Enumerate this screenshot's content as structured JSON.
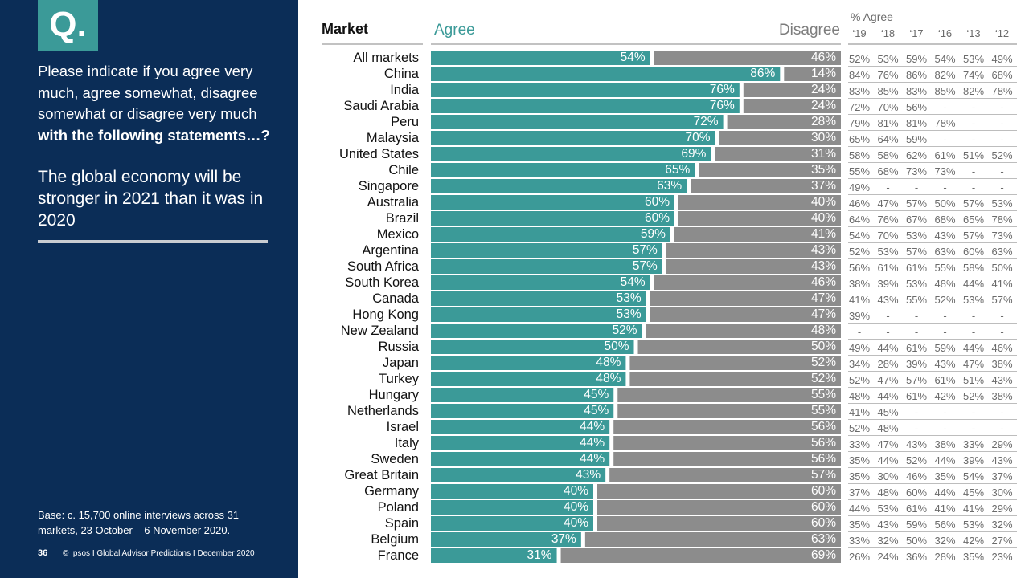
{
  "question": {
    "badge": "Q.",
    "text_regular": "Please indicate if you agree very much, agree somewhat, disagree somewhat or disagree very much",
    "text_bold": "with the following statements…?",
    "statement": "The global economy will be stronger in 2021 than it was in 2020"
  },
  "base_note": "Base: c. 15,700 online interviews across 31 markets,  23 October – 6 November 2020.",
  "footer": {
    "page_number": "36",
    "text": "© Ipsos I Global Advisor Predictions I December 2020"
  },
  "colors": {
    "panel": "#0b2d57",
    "agree": "#3b9a98",
    "disagree": "#8c8c8c",
    "accent": "#3b9a98"
  },
  "chart_data": {
    "type": "bar",
    "stacked": true,
    "orientation": "horizontal",
    "column_headers": {
      "market": "Market",
      "agree": "Agree",
      "disagree": "Disagree",
      "trend_title": "% Agree",
      "trend_years": [
        "‘19",
        "‘18",
        "‘17",
        "‘16",
        "‘13",
        "‘12"
      ]
    },
    "categories": [
      "All markets",
      "China",
      "India",
      "Saudi Arabia",
      "Peru",
      "Malaysia",
      "United States",
      "Chile",
      "Singapore",
      "Australia",
      "Brazil",
      "Mexico",
      "Argentina",
      "South Africa",
      "South Korea",
      "Canada",
      "Hong Kong",
      "New Zealand",
      "Russia",
      "Japan",
      "Turkey",
      "Hungary",
      "Netherlands",
      "Israel",
      "Italy",
      "Sweden",
      "Great Britain",
      "Germany",
      "Poland",
      "Spain",
      "Belgium",
      "France"
    ],
    "series": [
      {
        "name": "Agree",
        "values": [
          54,
          86,
          76,
          76,
          72,
          70,
          69,
          65,
          63,
          60,
          60,
          59,
          57,
          57,
          54,
          53,
          53,
          52,
          50,
          48,
          48,
          45,
          45,
          44,
          44,
          44,
          43,
          40,
          40,
          40,
          37,
          31
        ]
      },
      {
        "name": "Disagree",
        "values": [
          46,
          14,
          24,
          24,
          28,
          30,
          31,
          35,
          37,
          40,
          40,
          41,
          43,
          43,
          46,
          47,
          47,
          48,
          50,
          52,
          52,
          55,
          55,
          56,
          56,
          56,
          57,
          60,
          60,
          60,
          63,
          69
        ]
      }
    ],
    "xlim": [
      0,
      100
    ],
    "trend": [
      [
        "52%",
        "53%",
        "59%",
        "54%",
        "53%",
        "49%"
      ],
      [
        "84%",
        "76%",
        "86%",
        "82%",
        "74%",
        "68%"
      ],
      [
        "83%",
        "85%",
        "83%",
        "85%",
        "82%",
        "78%"
      ],
      [
        "72%",
        "70%",
        "56%",
        "-",
        "-",
        "-"
      ],
      [
        "79%",
        "81%",
        "81%",
        "78%",
        "-",
        "-"
      ],
      [
        "65%",
        "64%",
        "59%",
        "-",
        "-",
        "-"
      ],
      [
        "58%",
        "58%",
        "62%",
        "61%",
        "51%",
        "52%"
      ],
      [
        "55%",
        "68%",
        "73%",
        "73%",
        "-",
        "-"
      ],
      [
        "49%",
        "-",
        "-",
        "-",
        "-",
        "-"
      ],
      [
        "46%",
        "47%",
        "57%",
        "50%",
        "57%",
        "53%"
      ],
      [
        "64%",
        "76%",
        "67%",
        "68%",
        "65%",
        "78%"
      ],
      [
        "54%",
        "70%",
        "53%",
        "43%",
        "57%",
        "73%"
      ],
      [
        "52%",
        "53%",
        "57%",
        "63%",
        "60%",
        "63%"
      ],
      [
        "56%",
        "61%",
        "61%",
        "55%",
        "58%",
        "50%"
      ],
      [
        "38%",
        "39%",
        "53%",
        "48%",
        "44%",
        "41%"
      ],
      [
        "41%",
        "43%",
        "55%",
        "52%",
        "53%",
        "57%"
      ],
      [
        "39%",
        "-",
        "-",
        "-",
        "-",
        "-"
      ],
      [
        "-",
        "-",
        "-",
        "-",
        "-",
        "-"
      ],
      [
        "49%",
        "44%",
        "61%",
        "59%",
        "44%",
        "46%"
      ],
      [
        "34%",
        "28%",
        "39%",
        "43%",
        "47%",
        "38%"
      ],
      [
        "52%",
        "47%",
        "57%",
        "61%",
        "51%",
        "43%"
      ],
      [
        "48%",
        "44%",
        "61%",
        "42%",
        "52%",
        "38%"
      ],
      [
        "41%",
        "45%",
        "-",
        "-",
        "-",
        "-"
      ],
      [
        "52%",
        "48%",
        "-",
        "-",
        "-",
        "-"
      ],
      [
        "33%",
        "47%",
        "43%",
        "38%",
        "33%",
        "29%"
      ],
      [
        "35%",
        "44%",
        "52%",
        "44%",
        "39%",
        "43%"
      ],
      [
        "35%",
        "30%",
        "46%",
        "35%",
        "54%",
        "37%"
      ],
      [
        "37%",
        "48%",
        "60%",
        "44%",
        "45%",
        "30%"
      ],
      [
        "44%",
        "53%",
        "61%",
        "41%",
        "41%",
        "29%"
      ],
      [
        "35%",
        "43%",
        "59%",
        "56%",
        "53%",
        "32%"
      ],
      [
        "33%",
        "32%",
        "50%",
        "32%",
        "42%",
        "27%"
      ],
      [
        "26%",
        "24%",
        "36%",
        "28%",
        "35%",
        "23%"
      ]
    ]
  }
}
